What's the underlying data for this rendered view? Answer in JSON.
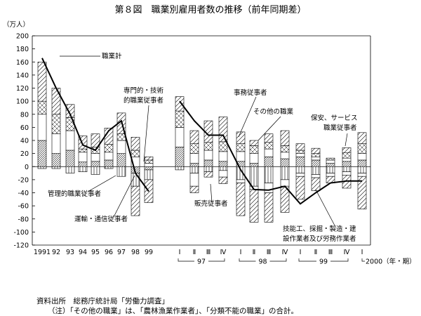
{
  "chart_data": {
    "type": "bar",
    "title": "第８図　職業別雇用者数の推移（前年同期差）",
    "ylabel": "（万人）",
    "ylim": [
      -120,
      200
    ],
    "yticks": [
      -120,
      -100,
      -80,
      -60,
      -40,
      -20,
      0,
      20,
      40,
      60,
      80,
      100,
      120,
      140,
      160,
      180,
      200
    ],
    "x_tick_labels": [
      "1991",
      "92",
      "93",
      "94",
      "95",
      "96",
      "97",
      "98",
      "99",
      "Ⅰ",
      "Ⅱ",
      "Ⅲ",
      "Ⅳ",
      "Ⅰ",
      "Ⅱ",
      "Ⅲ",
      "Ⅳ",
      "Ⅰ",
      "Ⅱ",
      "Ⅲ",
      "Ⅳ",
      "Ⅰ"
    ],
    "year_groups": [
      "97",
      "98",
      "99"
    ],
    "last_label": "2000（年・期）",
    "series": [
      {
        "name": "専門的・技術的職業従事者",
        "pattern": "dense-diag",
        "values": [
          40,
          20,
          25,
          7,
          8,
          10,
          20,
          -10,
          -5,
          30,
          5,
          10,
          8,
          8,
          5,
          15,
          12,
          15,
          10,
          5,
          8,
          10
        ]
      },
      {
        "name": "管理的職業従事者",
        "pattern": "vertical",
        "values": [
          -3,
          -3,
          -10,
          -8,
          -12,
          -3,
          -15,
          -20,
          -15,
          -5,
          -10,
          -8,
          -6,
          -20,
          -30,
          -25,
          -20,
          -10,
          -12,
          -10,
          -8,
          -10
        ]
      },
      {
        "name": "事務従事者",
        "pattern": "blank",
        "values": [
          40,
          30,
          30,
          15,
          12,
          12,
          20,
          15,
          5,
          30,
          15,
          15,
          15,
          15,
          15,
          12,
          10,
          5,
          5,
          5,
          5,
          10
        ]
      },
      {
        "name": "販売従事者",
        "pattern": "blank",
        "values": [
          0,
          0,
          0,
          0,
          0,
          0,
          0,
          0,
          0,
          0,
          -20,
          0,
          -10,
          -5,
          -5,
          -15,
          -10,
          -5,
          -5,
          -5,
          -5,
          -5
        ]
      },
      {
        "name": "保安、サービス職業従事者",
        "pattern": "cross",
        "values": [
          20,
          30,
          20,
          5,
          10,
          12,
          10,
          10,
          5,
          25,
          15,
          12,
          15,
          12,
          12,
          10,
          10,
          5,
          5,
          3,
          8,
          15
        ]
      },
      {
        "name": "その他の職業",
        "pattern": "dense-h",
        "values": [
          0,
          0,
          0,
          0,
          0,
          0,
          0,
          0,
          0,
          0,
          0,
          0,
          0,
          0,
          0,
          0,
          0,
          0,
          0,
          0,
          0,
          0
        ]
      },
      {
        "name": "運輸・通信従事者",
        "pattern": "diag",
        "values": [
          60,
          40,
          20,
          20,
          20,
          25,
          32,
          20,
          5,
          22,
          20,
          33,
          38,
          18,
          8,
          13,
          23,
          10,
          8,
          0,
          8,
          17
        ]
      },
      {
        "name": "技能工、採掘・製造・建設作業者及び労務作業者",
        "pattern": "diag",
        "values": [
          0,
          0,
          0,
          0,
          0,
          0,
          0,
          -45,
          -35,
          0,
          -10,
          -8,
          -10,
          -50,
          -50,
          -45,
          -40,
          -35,
          -20,
          -10,
          -20,
          -50
        ]
      }
    ],
    "total": {
      "name": "職業計",
      "values": [
        166,
        120,
        80,
        33,
        25,
        55,
        70,
        -10,
        -38,
        100,
        70,
        48,
        48,
        -5,
        -35,
        -36,
        -30,
        -57,
        -40,
        -25,
        -22,
        -22
      ]
    },
    "grid": false,
    "zero_line": true
  },
  "notes": {
    "source": "資料出所　総務庁統計局「労働力調査」",
    "note": "（注）「その他の職業」は、「農林漁業作業者」、「分類不能の職業」の合計。"
  }
}
